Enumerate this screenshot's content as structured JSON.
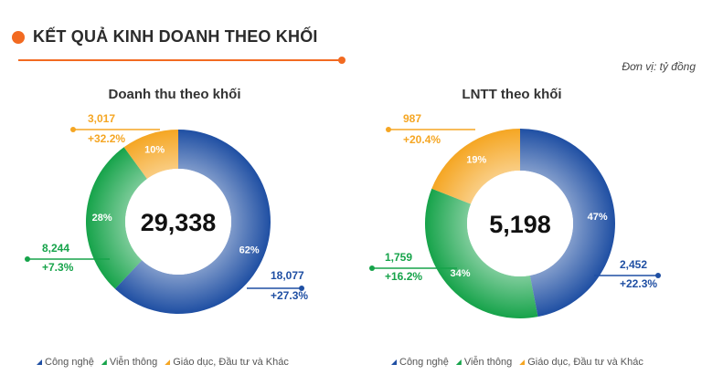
{
  "header": {
    "title": "KẾT QUẢ KINH DOANH THEO KHỐI",
    "unit": "Đơn vị: tỷ đồng"
  },
  "colors": {
    "blue": "#1f4fa3",
    "green": "#16a34a",
    "orange": "#f5a623",
    "accent": "#f26a21"
  },
  "chart_data": [
    {
      "type": "pie",
      "title": "Doanh thu theo khối",
      "center_value": "29,338",
      "segments": [
        {
          "category": "Công nghệ",
          "percent": 62,
          "percent_label": "62%",
          "value": "18,077",
          "growth": "+27.3%",
          "color": "#1f4fa3"
        },
        {
          "category": "Viễn thông",
          "percent": 28,
          "percent_label": "28%",
          "value": "8,244",
          "growth": "+7.3%",
          "color": "#16a34a"
        },
        {
          "category": "Giáo dục, Đầu tư và Khác",
          "percent": 10,
          "percent_label": "10%",
          "value": "3,017",
          "growth": "+32.2%",
          "color": "#f5a623"
        }
      ],
      "legend": [
        "Công nghệ",
        "Viễn thông",
        "Giáo dục, Đầu tư và Khác"
      ]
    },
    {
      "type": "pie",
      "title": "LNTT theo khối",
      "center_value": "5,198",
      "segments": [
        {
          "category": "Công nghệ",
          "percent": 47,
          "percent_label": "47%",
          "value": "2,452",
          "growth": "+22.3%",
          "color": "#1f4fa3"
        },
        {
          "category": "Viễn thông",
          "percent": 34,
          "percent_label": "34%",
          "value": "1,759",
          "growth": "+16.2%",
          "color": "#16a34a"
        },
        {
          "category": "Giáo dục, Đầu tư và Khác",
          "percent": 19,
          "percent_label": "19%",
          "value": "987",
          "growth": "+20.4%",
          "color": "#f5a623"
        }
      ],
      "legend": [
        "Công nghệ",
        "Viễn thông",
        "Giáo dục, Đầu tư và Khác"
      ]
    }
  ]
}
